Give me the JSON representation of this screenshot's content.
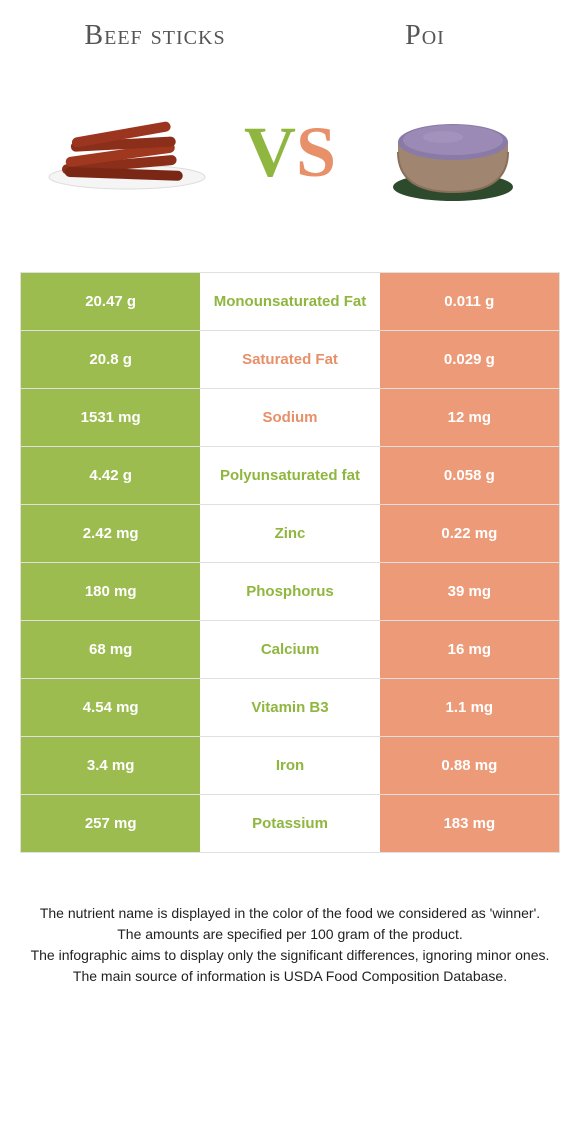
{
  "foods": {
    "left": {
      "title": "Beef sticks",
      "color": "#9cbc4f"
    },
    "right": {
      "title": "Poi",
      "color": "#ec9a77"
    }
  },
  "vs": {
    "v": "V",
    "s": "S"
  },
  "rows": [
    {
      "left": "20.47 g",
      "label": "Monounsaturated Fat",
      "right": "0.011 g",
      "winner": "left"
    },
    {
      "left": "20.8 g",
      "label": "Saturated Fat",
      "right": "0.029 g",
      "winner": "right"
    },
    {
      "left": "1531 mg",
      "label": "Sodium",
      "right": "12 mg",
      "winner": "right"
    },
    {
      "left": "4.42 g",
      "label": "Polyunsaturated fat",
      "right": "0.058 g",
      "winner": "left"
    },
    {
      "left": "2.42 mg",
      "label": "Zinc",
      "right": "0.22 mg",
      "winner": "left"
    },
    {
      "left": "180 mg",
      "label": "Phosphorus",
      "right": "39 mg",
      "winner": "left"
    },
    {
      "left": "68 mg",
      "label": "Calcium",
      "right": "16 mg",
      "winner": "left"
    },
    {
      "left": "4.54 mg",
      "label": "Vitamin B3",
      "right": "1.1 mg",
      "winner": "left"
    },
    {
      "left": "3.4 mg",
      "label": "Iron",
      "right": "0.88 mg",
      "winner": "left"
    },
    {
      "left": "257 mg",
      "label": "Potassium",
      "right": "183 mg",
      "winner": "left"
    }
  ],
  "footnotes": [
    "The nutrient name is displayed in the color of the food we considered as 'winner'.",
    "The amounts are specified per 100 gram of the product.",
    "The infographic aims to display only the significant differences, ignoring minor ones.",
    "The main source of information is USDA Food Composition Database."
  ],
  "colors": {
    "green": "#8fb63f",
    "orange": "#e79069"
  }
}
